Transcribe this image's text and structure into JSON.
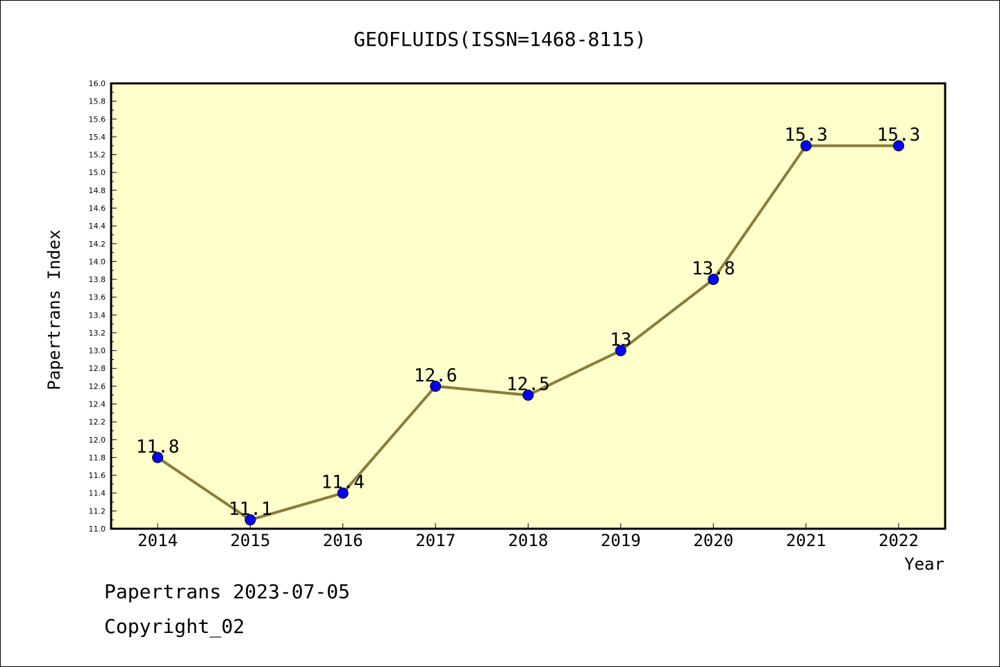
{
  "chart_data": {
    "type": "line",
    "title": "GEOFLUIDS(ISSN=1468-8115)",
    "xlabel": "Year",
    "ylabel": "Papertrans Index",
    "categories": [
      "2014",
      "2015",
      "2016",
      "2017",
      "2018",
      "2019",
      "2020",
      "2021",
      "2022"
    ],
    "series": [
      {
        "values": [
          11.8,
          11.1,
          11.4,
          12.6,
          12.5,
          13.0,
          13.8,
          15.3,
          15.3
        ]
      }
    ],
    "data_labels": [
      "11.8",
      "11.1",
      "11.4",
      "12.6",
      "12.5",
      "13",
      "13.8",
      "15.3",
      "15.3"
    ],
    "ylim": [
      11.0,
      16.0
    ],
    "ytick_step": 0.2,
    "yticks": [
      "11.0",
      "11.2",
      "11.4",
      "11.6",
      "11.8",
      "12.0",
      "12.2",
      "12.4",
      "12.6",
      "12.8",
      "13.0",
      "13.2",
      "13.4",
      "13.6",
      "13.8",
      "14.0",
      "14.2",
      "14.4",
      "14.6",
      "14.8",
      "15.0",
      "15.2",
      "15.4",
      "15.6",
      "15.8",
      "16.0"
    ],
    "grid": false,
    "legend": "none",
    "colors": {
      "plot_background": "#ffffcc",
      "line": "#8b7d3a",
      "marker": "#0000ff",
      "axis": "#000000"
    }
  },
  "footer": {
    "line1": "Papertrans 2023-07-05",
    "line2": "Copyright_02"
  }
}
